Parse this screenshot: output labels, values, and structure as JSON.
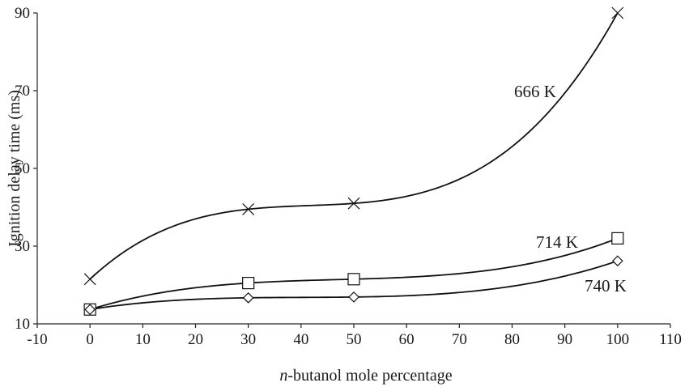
{
  "chart_data": {
    "type": "scatter",
    "title": "",
    "xlabel_italic": "n",
    "xlabel_rest": "-butanol mole percentage",
    "ylabel": "Ignition delay time (ms)",
    "xlim": [
      -10,
      110
    ],
    "ylim": [
      10,
      90
    ],
    "x_ticks": [
      -10,
      0,
      10,
      20,
      30,
      40,
      50,
      60,
      70,
      80,
      90,
      100,
      110
    ],
    "y_ticks": [
      10,
      30,
      50,
      70,
      90
    ],
    "grid": false,
    "legend": "none",
    "trendline": "polynomial",
    "series": [
      {
        "name": "666 K",
        "marker": "x",
        "x": [
          0,
          30,
          50,
          100
        ],
        "y": [
          21.5,
          39.5,
          41,
          90
        ]
      },
      {
        "name": "714 K",
        "marker": "square",
        "x": [
          0,
          30,
          50,
          100
        ],
        "y": [
          13.7,
          20.5,
          21.5,
          32
        ]
      },
      {
        "name": "740 K",
        "marker": "diamond",
        "x": [
          0,
          30,
          50,
          100
        ],
        "y": [
          13.7,
          16.7,
          16.9,
          26.2
        ]
      }
    ]
  }
}
